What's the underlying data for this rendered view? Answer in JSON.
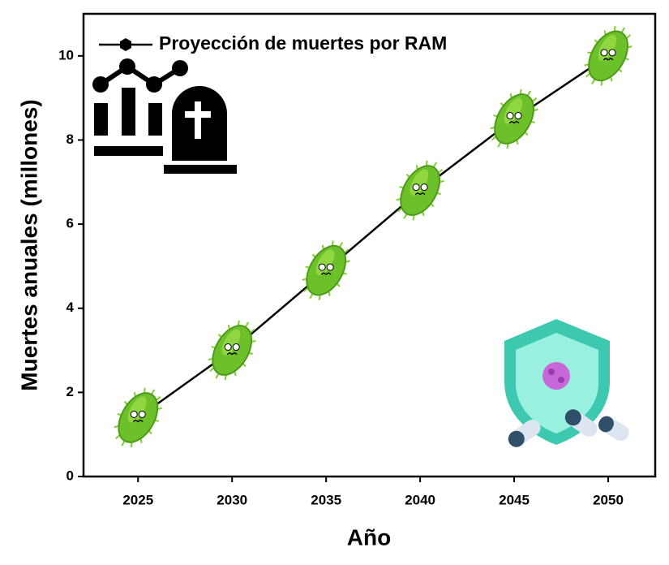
{
  "chart_data": {
    "type": "line",
    "x_label": "Año",
    "y_label": "Muertes anuales (millones)",
    "x": [
      2025,
      2030,
      2035,
      2040,
      2045,
      2050
    ],
    "series": [
      {
        "name": "Proyección de muertes por RAM",
        "color": "#000000",
        "values": [
          1.4,
          3.0,
          4.9,
          6.8,
          8.5,
          10.0
        ]
      }
    ],
    "xlim": [
      2022.1,
      2052.5
    ],
    "xticks": [
      2025,
      2030,
      2035,
      2040,
      2045,
      2050
    ],
    "ylim": [
      0,
      11
    ],
    "yticks": [
      0,
      2,
      4,
      6,
      8,
      10
    ],
    "legend": "top-left"
  }
}
